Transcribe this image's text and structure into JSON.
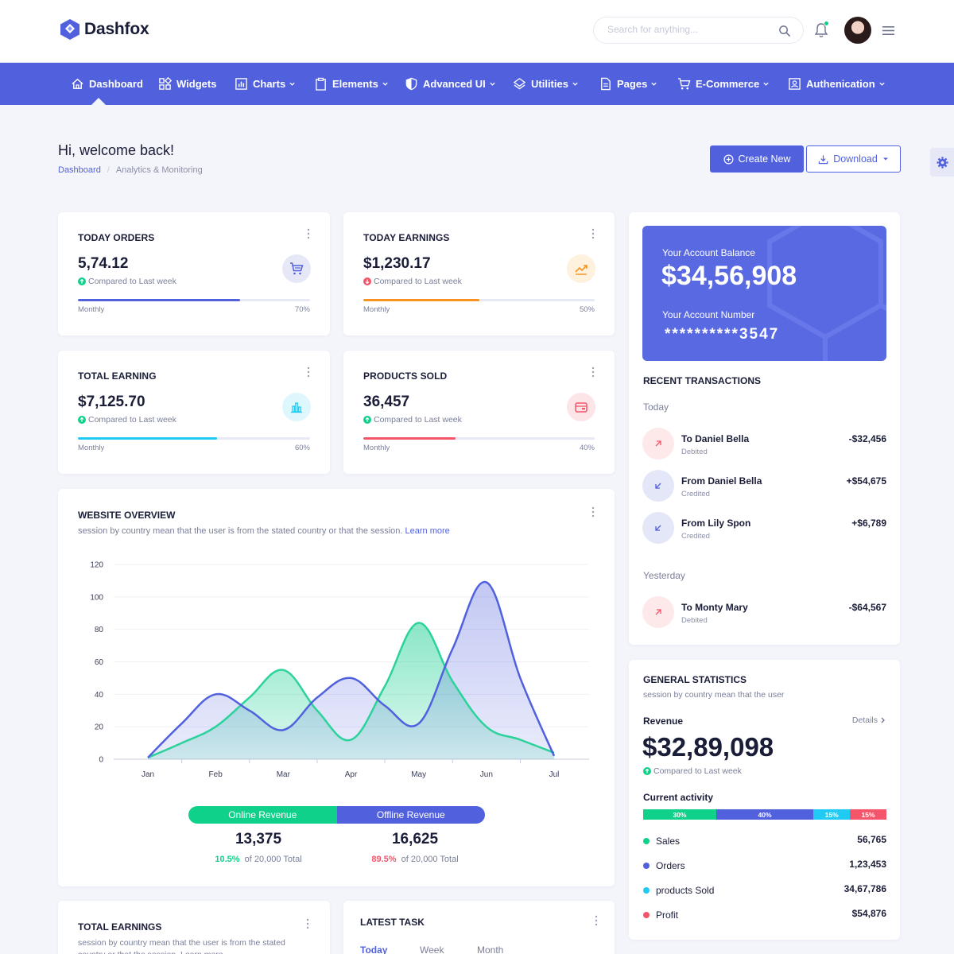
{
  "brand": {
    "name": "Dashfox"
  },
  "header": {
    "search_placeholder": "Search for anything..."
  },
  "nav": [
    {
      "label": "Dashboard",
      "icon": "home-icon",
      "dropdown": false
    },
    {
      "label": "Widgets",
      "icon": "widgets-icon",
      "dropdown": false
    },
    {
      "label": "Charts",
      "icon": "chart-icon",
      "dropdown": true
    },
    {
      "label": "Elements",
      "icon": "clipboard-icon",
      "dropdown": true
    },
    {
      "label": "Advanced UI",
      "icon": "shield-icon",
      "dropdown": true
    },
    {
      "label": "Utilities",
      "icon": "layers-icon",
      "dropdown": true
    },
    {
      "label": "Pages",
      "icon": "file-icon",
      "dropdown": true
    },
    {
      "label": "E-Commerce",
      "icon": "cart-icon",
      "dropdown": true
    },
    {
      "label": "Authenication",
      "icon": "user-card-icon",
      "dropdown": true
    }
  ],
  "page": {
    "title": "Hi, welcome back!",
    "breadcrumb": [
      "Dashboard",
      "Analytics & Monitoring"
    ],
    "create_label": "Create New",
    "download_label": "Download"
  },
  "stats": [
    {
      "title": "TODAY ORDERS",
      "value": "5,74.12",
      "compare": "Compared to Last week",
      "trend": "up",
      "period": "Monthly",
      "percent_label": "70%",
      "percent": 70,
      "color": "#5161de",
      "icon_bg": "#e6e8f8",
      "icon": "cart-icon"
    },
    {
      "title": "TODAY EARNINGS",
      "value": "$1,230.17",
      "compare": "Compared to Last week",
      "trend": "down",
      "period": "Monthly",
      "percent_label": "50%",
      "percent": 50,
      "color": "#f7931e",
      "icon_bg": "#fef1dd",
      "icon": "trend-icon"
    },
    {
      "title": "TOTAL EARNING",
      "value": "$7,125.70",
      "compare": "Compared to Last week",
      "trend": "up",
      "period": "Monthly",
      "percent_label": "60%",
      "percent": 60,
      "color": "#1fcbf2",
      "icon_bg": "#def7fd",
      "icon": "bar-chart-icon"
    },
    {
      "title": "PRODUCTS SOLD",
      "value": "36,457",
      "compare": "Compared to Last week",
      "trend": "up",
      "period": "Monthly",
      "percent_label": "40%",
      "percent": 40,
      "color": "#f5556a",
      "icon_bg": "#fde4e7",
      "icon": "wallet-icon"
    }
  ],
  "overview": {
    "title": "WEBSITE OVERVIEW",
    "subtitle": "session by country mean that the user is from the stated country or that the session.",
    "learn_more": "Learn more",
    "online_label": "Online Revenue",
    "offline_label": "Offline Revenue",
    "online_value": "13,375",
    "offline_value": "16,625",
    "online_pct": "10.5%",
    "offline_pct": "89.5%",
    "of_total": "of 20,000 Total",
    "online_color": "#10d18a",
    "offline_color": "#5161de"
  },
  "chart_data": {
    "type": "area",
    "categories": [
      "Jan",
      "Feb",
      "Mar",
      "Apr",
      "May",
      "Jun",
      "Jul"
    ],
    "yticks": [
      0,
      20,
      40,
      60,
      80,
      100,
      120
    ],
    "ylim": [
      0,
      120
    ],
    "grid": true,
    "series": [
      {
        "name": "Online Revenue",
        "color": "#2bd39a",
        "x": [
          0,
          0.5,
          1,
          1.5,
          2,
          2.5,
          3,
          3.5,
          4,
          4.5,
          5,
          5.5,
          6
        ],
        "y": [
          1,
          10,
          20,
          38,
          55,
          30,
          12,
          45,
          84,
          48,
          20,
          12,
          4
        ]
      },
      {
        "name": "Offline Revenue",
        "color": "#5161de",
        "x": [
          0,
          0.5,
          1,
          1.5,
          2,
          2.5,
          3,
          3.5,
          4,
          4.5,
          5,
          5.5,
          6
        ],
        "y": [
          1,
          22,
          40,
          30,
          18,
          38,
          50,
          33,
          22,
          68,
          109,
          50,
          2
        ]
      }
    ]
  },
  "balance": {
    "label": "Your Account Balance",
    "value": "$34,56,908",
    "number_label": "Your Account Number",
    "number": "**********3547"
  },
  "transactions": {
    "title": "RECENT TRANSACTIONS",
    "groups": [
      {
        "label": "Today",
        "items": [
          {
            "name": "To Daniel Bella",
            "type": "Debited",
            "amount": "-$32,456",
            "kind": "debit"
          },
          {
            "name": "From Daniel Bella",
            "type": "Credited",
            "amount": "+$54,675",
            "kind": "credit"
          },
          {
            "name": "From Lily Spon",
            "type": "Credited",
            "amount": "+$6,789",
            "kind": "credit"
          }
        ]
      },
      {
        "label": "Yesterday",
        "items": [
          {
            "name": "To Monty Mary",
            "type": "Debited",
            "amount": "-$64,567",
            "kind": "debit"
          }
        ]
      }
    ]
  },
  "general": {
    "title": "GENERAL STATISTICS",
    "subtitle": "session by country mean that the user",
    "revenue_label": "Revenue",
    "details_label": "Details",
    "revenue_value": "$32,89,098",
    "compare": "Compared to Last week",
    "activity_label": "Current activity",
    "segments": [
      {
        "label": "30%",
        "value": 30,
        "color": "#10d18a"
      },
      {
        "label": "40%",
        "value": 40,
        "color": "#5161de"
      },
      {
        "label": "15%",
        "value": 15,
        "color": "#1fcbf2"
      },
      {
        "label": "15%",
        "value": 15,
        "color": "#f5556a"
      }
    ],
    "rows": [
      {
        "name": "Sales",
        "value": "56,765",
        "color": "#10d18a"
      },
      {
        "name": "Orders",
        "value": "1,23,453",
        "color": "#5161de"
      },
      {
        "name": "products Sold",
        "value": "34,67,786",
        "color": "#1fcbf2"
      },
      {
        "name": "Profit",
        "value": "$54,876",
        "color": "#f5556a"
      }
    ]
  },
  "total_earnings": {
    "title": "TOTAL EARNINGS",
    "subtitle": "session by country mean that the user is from the stated country or that the session. Learn more"
  },
  "latest_task": {
    "title": "LATEST TASK",
    "tabs": [
      "Today",
      "Week",
      "Month"
    ]
  }
}
